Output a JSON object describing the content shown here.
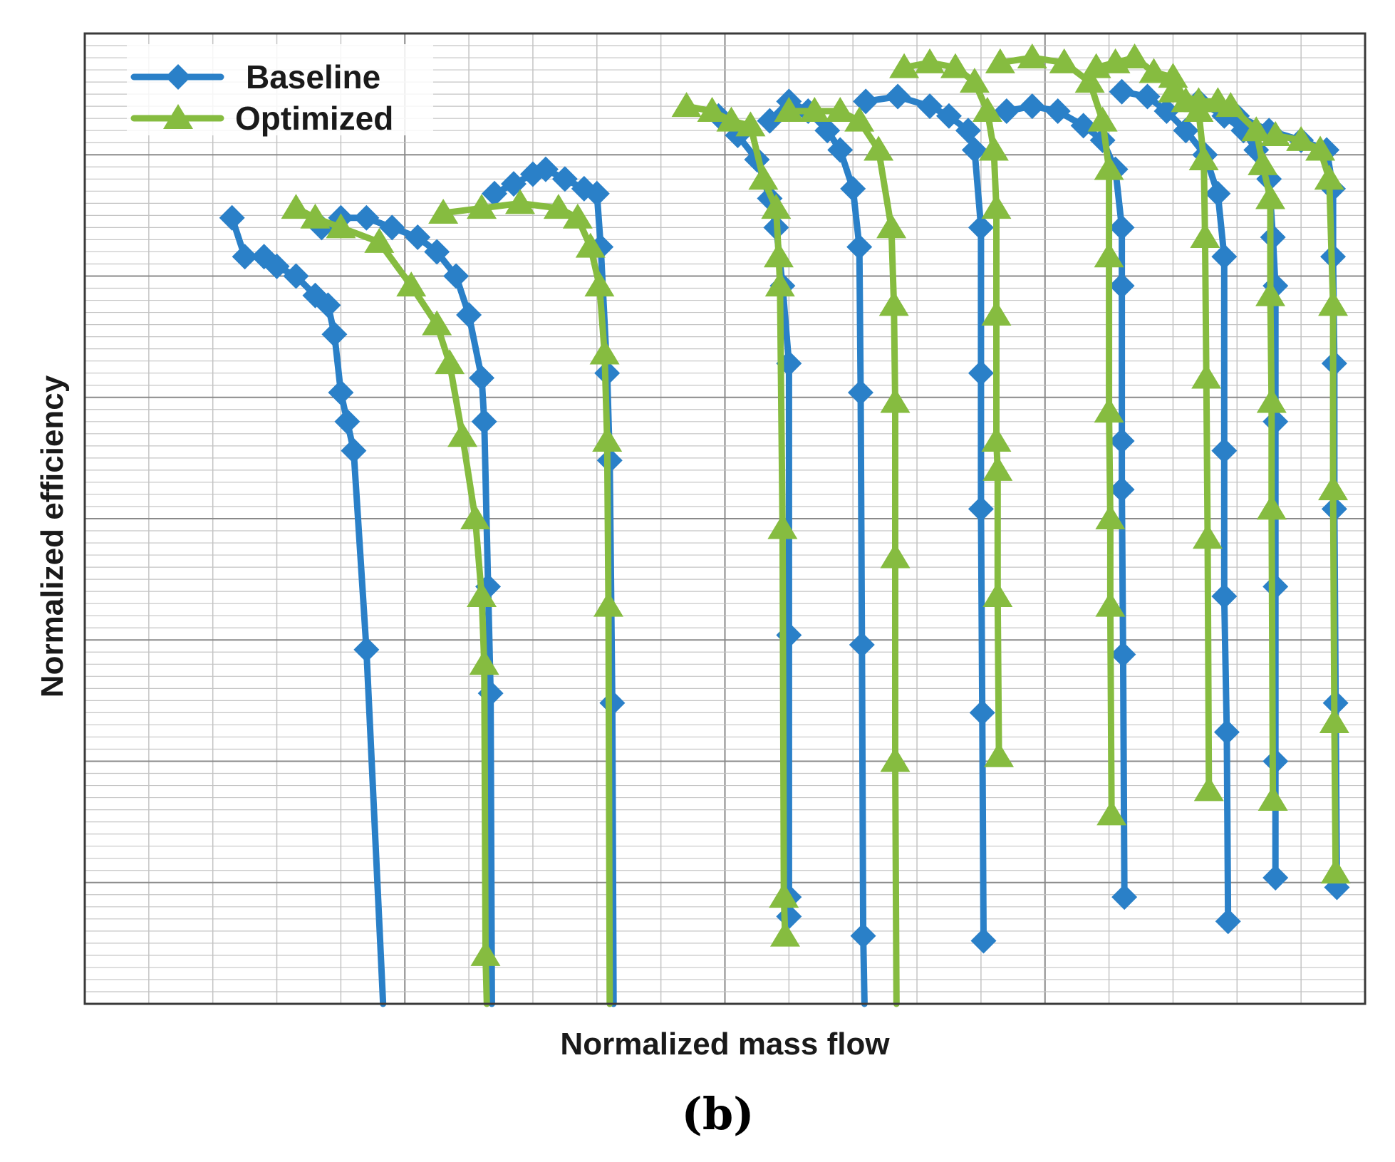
{
  "panel_label": "(b)",
  "colors": {
    "baseline": "#2a80c8",
    "optimized": "#86bc40",
    "grid_major": "#8a8a8a",
    "grid_minor": "#c4c4c4",
    "frame": "#3a3a3a"
  },
  "chart_data": {
    "type": "line",
    "title": "",
    "xlabel": "Normalized mass flow",
    "ylabel": "Normalized efficiency",
    "xlim": [
      0,
      1
    ],
    "ylim": [
      0,
      1
    ],
    "grid": true,
    "legend": {
      "position": "top-left",
      "entries": [
        "Baseline",
        "Optimized"
      ]
    },
    "series": [
      {
        "name": "Baseline",
        "style": "line-diamond",
        "curves": [
          {
            "speed_line": 1,
            "points": [
              [
                0.115,
                0.81
              ],
              [
                0.125,
                0.77
              ],
              [
                0.14,
                0.77
              ],
              [
                0.15,
                0.76
              ],
              [
                0.165,
                0.75
              ],
              [
                0.18,
                0.73
              ],
              [
                0.19,
                0.72
              ],
              [
                0.195,
                0.69
              ],
              [
                0.2,
                0.63
              ],
              [
                0.205,
                0.6
              ],
              [
                0.21,
                0.57
              ],
              [
                0.22,
                0.365
              ],
              [
                0.233,
                0.0
              ]
            ]
          },
          {
            "speed_line": 2,
            "points": [
              [
                0.185,
                0.8
              ],
              [
                0.2,
                0.81
              ],
              [
                0.22,
                0.81
              ],
              [
                0.24,
                0.8
              ],
              [
                0.26,
                0.79
              ],
              [
                0.275,
                0.775
              ],
              [
                0.29,
                0.75
              ],
              [
                0.3,
                0.71
              ],
              [
                0.31,
                0.645
              ],
              [
                0.312,
                0.6
              ],
              [
                0.315,
                0.43
              ],
              [
                0.317,
                0.32
              ],
              [
                0.318,
                0.0
              ]
            ]
          },
          {
            "speed_line": 3,
            "points": [
              [
                0.32,
                0.835
              ],
              [
                0.335,
                0.845
              ],
              [
                0.35,
                0.855
              ],
              [
                0.36,
                0.86
              ],
              [
                0.375,
                0.85
              ],
              [
                0.39,
                0.84
              ],
              [
                0.4,
                0.835
              ],
              [
                0.403,
                0.78
              ],
              [
                0.408,
                0.65
              ],
              [
                0.41,
                0.56
              ],
              [
                0.412,
                0.31
              ],
              [
                0.413,
                0.0
              ]
            ]
          },
          {
            "speed_line": 4,
            "points": [
              [
                0.495,
                0.915
              ],
              [
                0.51,
                0.895
              ],
              [
                0.525,
                0.87
              ],
              [
                0.535,
                0.83
              ],
              [
                0.54,
                0.8
              ],
              [
                0.545,
                0.74
              ],
              [
                0.55,
                0.66
              ],
              [
                0.55,
                0.38
              ],
              [
                0.55,
                0.11
              ],
              [
                0.55,
                0.09
              ]
            ]
          },
          {
            "speed_line": 5,
            "points": [
              [
                0.535,
                0.91
              ],
              [
                0.55,
                0.93
              ],
              [
                0.565,
                0.92
              ],
              [
                0.58,
                0.9
              ],
              [
                0.59,
                0.88
              ],
              [
                0.6,
                0.84
              ],
              [
                0.605,
                0.78
              ],
              [
                0.606,
                0.63
              ],
              [
                0.607,
                0.37
              ],
              [
                0.608,
                0.07
              ],
              [
                0.609,
                0.0
              ]
            ]
          },
          {
            "speed_line": 6,
            "points": [
              [
                0.61,
                0.93
              ],
              [
                0.635,
                0.935
              ],
              [
                0.66,
                0.925
              ],
              [
                0.675,
                0.915
              ],
              [
                0.69,
                0.9
              ],
              [
                0.695,
                0.88
              ],
              [
                0.7,
                0.8
              ],
              [
                0.7,
                0.65
              ],
              [
                0.7,
                0.51
              ],
              [
                0.701,
                0.3
              ],
              [
                0.702,
                0.065
              ]
            ]
          },
          {
            "speed_line": 7,
            "points": [
              [
                0.72,
                0.92
              ],
              [
                0.74,
                0.925
              ],
              [
                0.76,
                0.92
              ],
              [
                0.78,
                0.905
              ],
              [
                0.795,
                0.89
              ],
              [
                0.805,
                0.86
              ],
              [
                0.81,
                0.8
              ],
              [
                0.81,
                0.74
              ],
              [
                0.81,
                0.58
              ],
              [
                0.81,
                0.53
              ],
              [
                0.811,
                0.36
              ],
              [
                0.812,
                0.11
              ]
            ]
          },
          {
            "speed_line": 8,
            "points": [
              [
                0.81,
                0.94
              ],
              [
                0.83,
                0.935
              ],
              [
                0.845,
                0.92
              ],
              [
                0.86,
                0.9
              ],
              [
                0.875,
                0.875
              ],
              [
                0.885,
                0.835
              ],
              [
                0.89,
                0.77
              ],
              [
                0.89,
                0.57
              ],
              [
                0.89,
                0.42
              ],
              [
                0.892,
                0.28
              ],
              [
                0.893,
                0.085
              ]
            ]
          },
          {
            "speed_line": 9,
            "points": [
              [
                0.87,
                0.93
              ],
              [
                0.89,
                0.915
              ],
              [
                0.905,
                0.9
              ],
              [
                0.915,
                0.88
              ],
              [
                0.925,
                0.85
              ],
              [
                0.928,
                0.79
              ],
              [
                0.93,
                0.74
              ],
              [
                0.93,
                0.6
              ],
              [
                0.93,
                0.43
              ],
              [
                0.93,
                0.25
              ],
              [
                0.93,
                0.13
              ]
            ]
          },
          {
            "speed_line": 10,
            "points": [
              [
                0.9,
                0.915
              ],
              [
                0.925,
                0.9
              ],
              [
                0.95,
                0.89
              ],
              [
                0.97,
                0.88
              ],
              [
                0.975,
                0.84
              ],
              [
                0.975,
                0.77
              ],
              [
                0.976,
                0.66
              ],
              [
                0.976,
                0.51
              ],
              [
                0.977,
                0.31
              ],
              [
                0.978,
                0.12
              ]
            ]
          }
        ]
      },
      {
        "name": "Optimized",
        "style": "line-triangle",
        "curves": [
          {
            "speed_line": 1,
            "points": [
              [
                0.165,
                0.82
              ],
              [
                0.18,
                0.81
              ],
              [
                0.2,
                0.8
              ],
              [
                0.23,
                0.785
              ],
              [
                0.255,
                0.74
              ],
              [
                0.275,
                0.7
              ],
              [
                0.285,
                0.66
              ],
              [
                0.295,
                0.585
              ],
              [
                0.305,
                0.5
              ],
              [
                0.31,
                0.42
              ],
              [
                0.312,
                0.35
              ],
              [
                0.313,
                0.05
              ],
              [
                0.314,
                0.0
              ]
            ]
          },
          {
            "speed_line": 2,
            "points": [
              [
                0.28,
                0.815
              ],
              [
                0.31,
                0.82
              ],
              [
                0.34,
                0.825
              ],
              [
                0.37,
                0.82
              ],
              [
                0.385,
                0.81
              ],
              [
                0.395,
                0.78
              ],
              [
                0.402,
                0.74
              ],
              [
                0.406,
                0.67
              ],
              [
                0.408,
                0.58
              ],
              [
                0.409,
                0.41
              ],
              [
                0.41,
                0.0
              ]
            ]
          },
          {
            "speed_line": 3,
            "points": [
              [
                0.47,
                0.925
              ],
              [
                0.49,
                0.92
              ],
              [
                0.505,
                0.91
              ],
              [
                0.52,
                0.905
              ],
              [
                0.53,
                0.85
              ],
              [
                0.54,
                0.82
              ],
              [
                0.542,
                0.77
              ],
              [
                0.543,
                0.74
              ],
              [
                0.545,
                0.49
              ],
              [
                0.546,
                0.11
              ],
              [
                0.547,
                0.07
              ]
            ]
          },
          {
            "speed_line": 4,
            "points": [
              [
                0.55,
                0.92
              ],
              [
                0.57,
                0.92
              ],
              [
                0.59,
                0.92
              ],
              [
                0.605,
                0.91
              ],
              [
                0.62,
                0.88
              ],
              [
                0.63,
                0.8
              ],
              [
                0.632,
                0.72
              ],
              [
                0.633,
                0.62
              ],
              [
                0.633,
                0.46
              ],
              [
                0.633,
                0.25
              ],
              [
                0.634,
                0.0
              ]
            ]
          },
          {
            "speed_line": 5,
            "points": [
              [
                0.64,
                0.965
              ],
              [
                0.66,
                0.97
              ],
              [
                0.68,
                0.965
              ],
              [
                0.695,
                0.95
              ],
              [
                0.705,
                0.92
              ],
              [
                0.71,
                0.88
              ],
              [
                0.712,
                0.82
              ],
              [
                0.712,
                0.71
              ],
              [
                0.712,
                0.58
              ],
              [
                0.713,
                0.55
              ],
              [
                0.713,
                0.42
              ],
              [
                0.714,
                0.255
              ]
            ]
          },
          {
            "speed_line": 6,
            "points": [
              [
                0.715,
                0.97
              ],
              [
                0.74,
                0.975
              ],
              [
                0.765,
                0.97
              ],
              [
                0.785,
                0.95
              ],
              [
                0.795,
                0.91
              ],
              [
                0.8,
                0.86
              ],
              [
                0.8,
                0.77
              ],
              [
                0.8,
                0.61
              ],
              [
                0.801,
                0.5
              ],
              [
                0.801,
                0.41
              ],
              [
                0.802,
                0.195
              ]
            ]
          },
          {
            "speed_line": 7,
            "points": [
              [
                0.79,
                0.965
              ],
              [
                0.805,
                0.97
              ],
              [
                0.82,
                0.975
              ],
              [
                0.835,
                0.96
              ],
              [
                0.85,
                0.955
              ],
              [
                0.86,
                0.93
              ],
              [
                0.87,
                0.92
              ],
              [
                0.874,
                0.87
              ],
              [
                0.875,
                0.79
              ],
              [
                0.876,
                0.645
              ],
              [
                0.877,
                0.48
              ],
              [
                0.878,
                0.22
              ]
            ]
          },
          {
            "speed_line": 8,
            "points": [
              [
                0.85,
                0.94
              ],
              [
                0.87,
                0.93
              ],
              [
                0.885,
                0.93
              ],
              [
                0.895,
                0.925
              ],
              [
                0.915,
                0.9
              ],
              [
                0.92,
                0.865
              ],
              [
                0.926,
                0.83
              ],
              [
                0.926,
                0.73
              ],
              [
                0.927,
                0.62
              ],
              [
                0.927,
                0.51
              ],
              [
                0.928,
                0.21
              ]
            ]
          },
          {
            "speed_line": 9,
            "points": [
              [
                0.93,
                0.895
              ],
              [
                0.95,
                0.89
              ],
              [
                0.965,
                0.88
              ],
              [
                0.972,
                0.85
              ],
              [
                0.975,
                0.72
              ],
              [
                0.975,
                0.53
              ],
              [
                0.976,
                0.29
              ],
              [
                0.977,
                0.135
              ]
            ]
          }
        ]
      }
    ]
  }
}
